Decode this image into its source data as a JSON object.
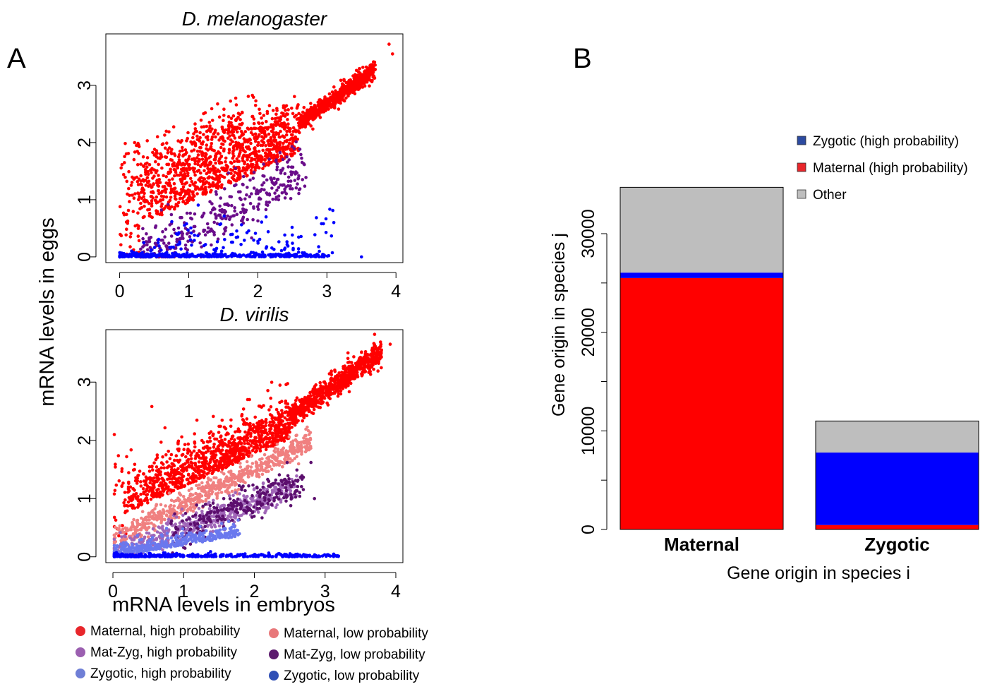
{
  "panelA": {
    "label": "A",
    "ylabel": "mRNA levels in eggs",
    "xlabel": "mRNA levels in embryos",
    "legend": [
      {
        "label": "Maternal, high probability",
        "color": "#e8262b"
      },
      {
        "label": "Maternal, low probability",
        "color": "#e8787a"
      },
      {
        "label": "Mat-Zyg, high probability",
        "color": "#9b5fb0"
      },
      {
        "label": "Mat-Zyg, low probability",
        "color": "#5c1b6e"
      },
      {
        "label": "Zygotic, high probability",
        "color": "#6f7fd6"
      },
      {
        "label": "Zygotic, low probability",
        "color": "#2f4fb5"
      }
    ]
  },
  "panelB": {
    "label": "B"
  },
  "chart_data": [
    {
      "type": "scatter",
      "title": "D. melanogaster",
      "xlabel": "mRNA levels in embryos",
      "ylabel": "mRNA levels in eggs",
      "xlim": [
        -0.2,
        4.1
      ],
      "ylim": [
        -0.1,
        3.9
      ],
      "xticks": [
        "0",
        "1",
        "2",
        "3",
        "4"
      ],
      "yticks": [
        "0",
        "1",
        "2",
        "3"
      ],
      "series": [
        {
          "name": "Maternal, high probability",
          "color": "#ff0000",
          "description_points": 1800
        },
        {
          "name": "Mat-Zyg, high probability",
          "color": "#6a0d8a",
          "description_points": 350
        },
        {
          "name": "Zygotic, high probability",
          "color": "#0000ff",
          "description_points": 500
        }
      ]
    },
    {
      "type": "scatter",
      "title": "D. virilis",
      "xlabel": "mRNA levels in embryos",
      "ylabel": "mRNA levels in eggs",
      "xlim": [
        -0.1,
        4.1
      ],
      "ylim": [
        -0.1,
        3.9
      ],
      "xticks": [
        "0",
        "1",
        "2",
        "3",
        "4"
      ],
      "yticks": [
        "0",
        "1",
        "2",
        "3"
      ],
      "series": [
        {
          "name": "Maternal, high probability",
          "color": "#ff0000",
          "description_points": 1800
        },
        {
          "name": "Maternal, low probability",
          "color": "#f08080",
          "description_points": 700
        },
        {
          "name": "Mat-Zyg, high probability",
          "color": "#a066b8",
          "description_points": 500
        },
        {
          "name": "Mat-Zyg, low probability",
          "color": "#5c0f6e",
          "description_points": 250
        },
        {
          "name": "Zygotic, high probability",
          "color": "#6a78ee",
          "description_points": 350
        },
        {
          "name": "Zygotic, low probability",
          "color": "#0000ff",
          "description_points": 350
        }
      ]
    },
    {
      "type": "bar",
      "stacked": true,
      "title": "",
      "xlabel": "Gene origin in species i",
      "ylabel": "Gene origin in species j",
      "categories": [
        "Maternal",
        "Zygotic"
      ],
      "ylim": [
        0,
        36000
      ],
      "yticks": [
        "0",
        "10000",
        "20000",
        "30000"
      ],
      "series": [
        {
          "name": "Maternal (high probability)",
          "color": "#ff0000",
          "values": [
            25500,
            450
          ]
        },
        {
          "name": "Zygotic (high probability)",
          "color": "#0000ff",
          "values": [
            550,
            7350
          ]
        },
        {
          "name": "Other",
          "color": "#bebebe",
          "values": [
            8650,
            3200
          ]
        }
      ],
      "legend": [
        {
          "label": "Zygotic (high probability)",
          "color": "#2c4aa0"
        },
        {
          "label": "Maternal (high probability)",
          "color": "#e8262b"
        },
        {
          "label": "Other",
          "color": "#bebebe"
        }
      ],
      "legend_position": "top-right"
    }
  ]
}
